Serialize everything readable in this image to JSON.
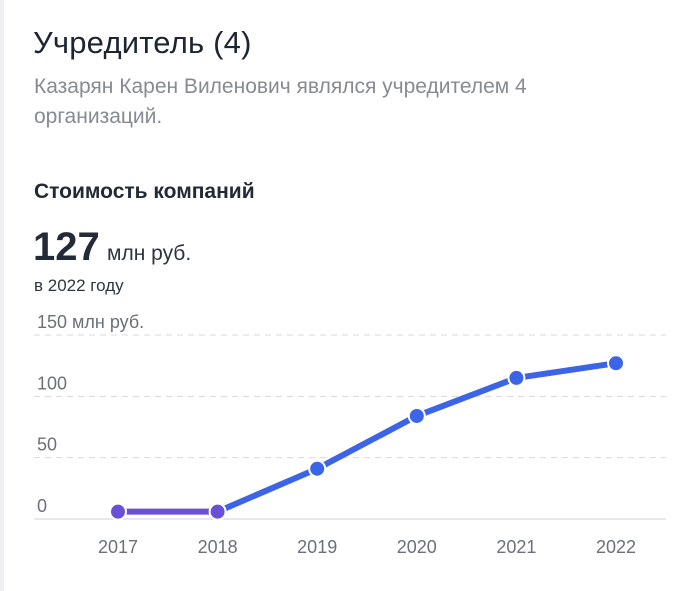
{
  "header": {
    "title": "Учредитель (4)",
    "subtitle": "Казарян Карен Виленович являлся учредителем 4 организаций."
  },
  "summary": {
    "section_title": "Стоимость компаний",
    "value": "127",
    "unit": "млн руб.",
    "year_note": "в 2022 году"
  },
  "colors": {
    "line": "#3b64e6",
    "line_flat": "#6a4fd8",
    "grid": "#d6d9de",
    "axis_text": "#6b7079"
  },
  "chart_data": {
    "type": "line",
    "title": "Стоимость компаний",
    "ylabel": "млн руб.",
    "x": [
      "2017",
      "2018",
      "2019",
      "2020",
      "2021",
      "2022"
    ],
    "y_ticks": [
      "150 млн руб.",
      "100",
      "50",
      "0"
    ],
    "y_tick_values": [
      150,
      100,
      50,
      0
    ],
    "ylim": [
      0,
      150
    ],
    "grid": true,
    "series": [
      {
        "values": [
          6,
          6,
          41,
          84,
          115,
          127
        ]
      }
    ]
  }
}
